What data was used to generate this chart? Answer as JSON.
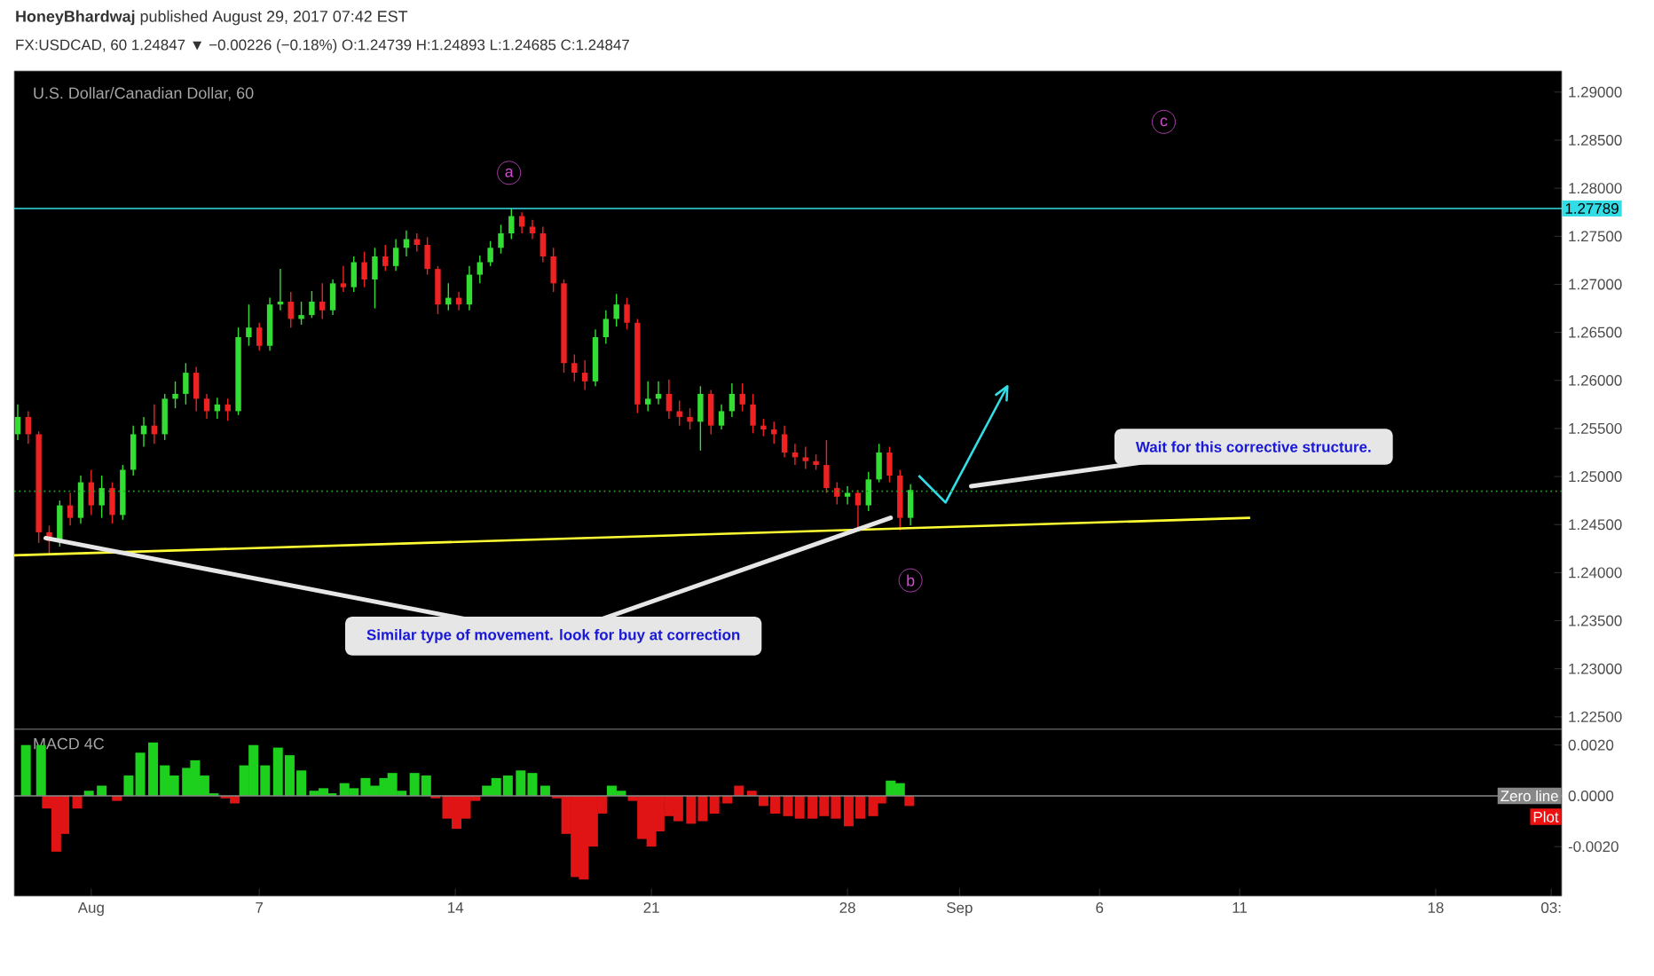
{
  "chart_data": [
    {
      "type": "candlestick",
      "title": "U.S. Dollar/Canadian Dollar, 60",
      "subtitle": "FX:USDCAD, 60  1.24847 ▼ −0.00226 (−0.18%) O:1.24739 H:1.24893 L:1.24685 C:1.24847",
      "xlim": [
        "2017-07-29T06:00",
        "2017-09-22T12:00"
      ],
      "ylim": [
        1.2237,
        1.2922
      ],
      "tick_labels": "y",
      "yticks": [
        {
          "value": 1.225,
          "label": "1.22500"
        },
        {
          "value": 1.23,
          "label": "1.23000"
        },
        {
          "value": 1.235,
          "label": "1.23500"
        },
        {
          "value": 1.24,
          "label": "1.24000"
        },
        {
          "value": 1.245,
          "label": "1.24500"
        },
        {
          "value": 1.25,
          "label": "1.25000"
        },
        {
          "value": 1.255,
          "label": "1.25500"
        },
        {
          "value": 1.26,
          "label": "1.26000"
        },
        {
          "value": 1.265,
          "label": "1.26500"
        },
        {
          "value": 1.27,
          "label": "1.27000"
        },
        {
          "value": 1.275,
          "label": "1.27500"
        },
        {
          "value": 1.28,
          "label": "1.28000"
        },
        {
          "value": 1.285,
          "label": "1.28500"
        },
        {
          "value": 1.29,
          "label": "1.29000"
        }
      ],
      "series": [
        {
          "type": "candlestick",
          "x": [
            "2017-07-29T09:00",
            "2017-07-29T18:00",
            "2017-07-30T03:00",
            "2017-07-30T12:00",
            "2017-07-30T21:00",
            "2017-07-31T06:00",
            "2017-07-31T15:00",
            "2017-08-01T00:00",
            "2017-08-01T09:00",
            "2017-08-01T18:00",
            "2017-08-02T03:00",
            "2017-08-02T12:00",
            "2017-08-02T21:00",
            "2017-08-03T06:00",
            "2017-08-03T15:00",
            "2017-08-04T00:00",
            "2017-08-04T09:00",
            "2017-08-04T18:00",
            "2017-08-05T03:00",
            "2017-08-05T12:00",
            "2017-08-05T21:00",
            "2017-08-06T06:00",
            "2017-08-06T15:00",
            "2017-08-07T00:00",
            "2017-08-07T09:00",
            "2017-08-07T18:00",
            "2017-08-08T03:00",
            "2017-08-08T12:00",
            "2017-08-08T21:00",
            "2017-08-09T06:00",
            "2017-08-09T15:00",
            "2017-08-10T00:00",
            "2017-08-10T09:00",
            "2017-08-10T18:00",
            "2017-08-11T03:00",
            "2017-08-11T12:00",
            "2017-08-11T21:00",
            "2017-08-12T06:00",
            "2017-08-12T15:00",
            "2017-08-13T00:00",
            "2017-08-13T09:00",
            "2017-08-13T18:00",
            "2017-08-14T03:00",
            "2017-08-14T12:00",
            "2017-08-14T21:00",
            "2017-08-15T06:00",
            "2017-08-15T15:00",
            "2017-08-16T00:00",
            "2017-08-16T09:00",
            "2017-08-16T18:00",
            "2017-08-17T03:00",
            "2017-08-17T12:00",
            "2017-08-17T21:00",
            "2017-08-18T06:00",
            "2017-08-18T15:00",
            "2017-08-19T00:00",
            "2017-08-19T09:00",
            "2017-08-19T18:00",
            "2017-08-20T03:00",
            "2017-08-20T12:00",
            "2017-08-20T21:00",
            "2017-08-21T06:00",
            "2017-08-21T15:00",
            "2017-08-22T00:00",
            "2017-08-22T09:00",
            "2017-08-22T18:00",
            "2017-08-23T03:00",
            "2017-08-23T12:00",
            "2017-08-23T21:00",
            "2017-08-24T06:00",
            "2017-08-24T15:00",
            "2017-08-25T00:00",
            "2017-08-25T09:00",
            "2017-08-25T18:00",
            "2017-08-26T03:00",
            "2017-08-26T12:00",
            "2017-08-26T21:00",
            "2017-08-27T06:00",
            "2017-08-27T15:00",
            "2017-08-28T00:00",
            "2017-08-28T09:00",
            "2017-08-28T18:00",
            "2017-08-29T03:00",
            "2017-08-29T12:00",
            "2017-08-29T21:00",
            "2017-08-30T06:00"
          ],
          "ohlc": [
            [
              1.2544,
              1.2575,
              1.2538,
              1.2562
            ],
            [
              1.2562,
              1.2568,
              1.2534,
              1.2544
            ],
            [
              1.2544,
              1.2547,
              1.2431,
              1.2442
            ],
            [
              1.2442,
              1.2449,
              1.242,
              1.2433
            ],
            [
              1.2433,
              1.2475,
              1.2427,
              1.247
            ],
            [
              1.247,
              1.2483,
              1.2449,
              1.2457
            ],
            [
              1.2457,
              1.2501,
              1.2451,
              1.2494
            ],
            [
              1.2494,
              1.2507,
              1.246,
              1.247
            ],
            [
              1.247,
              1.2501,
              1.2457,
              1.2488
            ],
            [
              1.2488,
              1.2494,
              1.2451,
              1.246
            ],
            [
              1.246,
              1.2512,
              1.2455,
              1.2507
            ],
            [
              1.2507,
              1.2553,
              1.2501,
              1.2544
            ],
            [
              1.2544,
              1.2562,
              1.2531,
              1.2553
            ],
            [
              1.2553,
              1.2575,
              1.2534,
              1.2544
            ],
            [
              1.2544,
              1.2586,
              1.2538,
              1.2581
            ],
            [
              1.2581,
              1.2599,
              1.2571,
              1.2586
            ],
            [
              1.2586,
              1.2618,
              1.2575,
              1.2608
            ],
            [
              1.2608,
              1.2614,
              1.2568,
              1.2581
            ],
            [
              1.2581,
              1.2586,
              1.256,
              1.2568
            ],
            [
              1.2568,
              1.2582,
              1.256,
              1.2575
            ],
            [
              1.2575,
              1.2581,
              1.2558,
              1.2568
            ],
            [
              1.2568,
              1.2655,
              1.2564,
              1.2645
            ],
            [
              1.2645,
              1.2679,
              1.2636,
              1.2655
            ],
            [
              1.2655,
              1.266,
              1.2631,
              1.2636
            ],
            [
              1.2636,
              1.2686,
              1.2631,
              1.2679
            ],
            [
              1.2679,
              1.2716,
              1.2673,
              1.2682
            ],
            [
              1.2682,
              1.2692,
              1.2655,
              1.2664
            ],
            [
              1.2664,
              1.2682,
              1.2658,
              1.2668
            ],
            [
              1.2668,
              1.2693,
              1.2665,
              1.2682
            ],
            [
              1.2682,
              1.2701,
              1.2664,
              1.2673
            ],
            [
              1.2673,
              1.2705,
              1.2668,
              1.2701
            ],
            [
              1.2701,
              1.2719,
              1.2692,
              1.2697
            ],
            [
              1.2697,
              1.2729,
              1.2692,
              1.2723
            ],
            [
              1.2723,
              1.2734,
              1.2697,
              1.2705
            ],
            [
              1.2705,
              1.2738,
              1.2675,
              1.2729
            ],
            [
              1.2729,
              1.2741,
              1.2714,
              1.2719
            ],
            [
              1.2719,
              1.2747,
              1.2714,
              1.2738
            ],
            [
              1.2738,
              1.2756,
              1.2729,
              1.2747
            ],
            [
              1.2747,
              1.2753,
              1.2734,
              1.2741
            ],
            [
              1.2741,
              1.2749,
              1.271,
              1.2716
            ],
            [
              1.2716,
              1.2719,
              1.2669,
              1.2679
            ],
            [
              1.2679,
              1.2701,
              1.2673,
              1.2686
            ],
            [
              1.2686,
              1.2692,
              1.2673,
              1.2679
            ],
            [
              1.2679,
              1.2719,
              1.2673,
              1.271
            ],
            [
              1.271,
              1.273,
              1.2701,
              1.2723
            ],
            [
              1.2723,
              1.2745,
              1.2719,
              1.2738
            ],
            [
              1.2738,
              1.2762,
              1.2732,
              1.2753
            ],
            [
              1.2753,
              1.2779,
              1.2747,
              1.2771
            ],
            [
              1.2771,
              1.2775,
              1.2753,
              1.276
            ],
            [
              1.276,
              1.2767,
              1.2747,
              1.2753
            ],
            [
              1.2753,
              1.276,
              1.2723,
              1.2729
            ],
            [
              1.2729,
              1.2738,
              1.2692,
              1.2701
            ],
            [
              1.2701,
              1.2705,
              1.2608,
              1.2618
            ],
            [
              1.2618,
              1.2627,
              1.2599,
              1.2608
            ],
            [
              1.2608,
              1.2621,
              1.259,
              1.2599
            ],
            [
              1.2599,
              1.2653,
              1.2594,
              1.2645
            ],
            [
              1.2645,
              1.2673,
              1.2638,
              1.2664
            ],
            [
              1.2664,
              1.269,
              1.2656,
              1.2679
            ],
            [
              1.2679,
              1.2686,
              1.2653,
              1.266
            ],
            [
              1.266,
              1.2664,
              1.2566,
              1.2575
            ],
            [
              1.2575,
              1.2599,
              1.2568,
              1.2581
            ],
            [
              1.2581,
              1.2599,
              1.2575,
              1.2586
            ],
            [
              1.2586,
              1.2601,
              1.256,
              1.2568
            ],
            [
              1.2568,
              1.2579,
              1.2553,
              1.2562
            ],
            [
              1.2562,
              1.2571,
              1.2549,
              1.2557
            ],
            [
              1.2557,
              1.2594,
              1.2527,
              1.2586
            ],
            [
              1.2586,
              1.259,
              1.2544,
              1.2553
            ],
            [
              1.2553,
              1.2575,
              1.2549,
              1.2568
            ],
            [
              1.2568,
              1.2597,
              1.2562,
              1.2586
            ],
            [
              1.2586,
              1.2597,
              1.2568,
              1.2575
            ],
            [
              1.2575,
              1.2586,
              1.2545,
              1.2553
            ],
            [
              1.2553,
              1.256,
              1.2542,
              1.2549
            ],
            [
              1.2549,
              1.2557,
              1.2534,
              1.2544
            ],
            [
              1.2544,
              1.2553,
              1.252,
              1.2525
            ],
            [
              1.2525,
              1.2534,
              1.2512,
              1.252
            ],
            [
              1.252,
              1.2531,
              1.2508,
              1.2516
            ],
            [
              1.2516,
              1.2523,
              1.2507,
              1.2512
            ],
            [
              1.2512,
              1.2538,
              1.2483,
              1.2488
            ],
            [
              1.2488,
              1.2494,
              1.2471,
              1.2479
            ],
            [
              1.2479,
              1.249,
              1.2471,
              1.2483
            ],
            [
              1.2483,
              1.2486,
              1.2447,
              1.247
            ],
            [
              1.247,
              1.2505,
              1.2464,
              1.2497
            ],
            [
              1.2497,
              1.2534,
              1.2494,
              1.2525
            ],
            [
              1.2525,
              1.2531,
              1.2494,
              1.2501
            ],
            [
              1.2501,
              1.2507,
              1.2444,
              1.2457
            ],
            [
              1.2457,
              1.2492,
              1.2449,
              1.2486
            ]
          ]
        },
        {
          "type": "line",
          "color": "#ffff33",
          "x": [
            "2017-07-29T06:00",
            "2017-09-11T09:00"
          ],
          "values": [
            1.2418,
            1.2457
          ]
        },
        {
          "type": "line",
          "color": "#33dde6",
          "x": [
            "2017-08-30T13:00",
            "2017-08-31T12:00",
            "2017-09-02T17:00"
          ],
          "values": [
            1.2501,
            1.2473,
            1.2594
          ]
        }
      ],
      "ref_lines": [
        {
          "axis": "y",
          "value": 1.27789,
          "label": "1.27789",
          "color": "#33dde6"
        },
        {
          "axis": "y",
          "value": 1.24847,
          "color": "#22aa22",
          "line_style": "dotted"
        }
      ],
      "annotations": [
        "**HoneyBhardwaj** published August 29, 2017 07:42 EST",
        {
          "text": "Similar type of movement. look for buy at correction",
          "x": "2017-07-30T09:00",
          "y": 1.2436
        },
        {
          "text": "Wait for this corrective structure.",
          "x": "2017-09-01T10:00",
          "y": 1.249
        },
        {
          "text": "a",
          "x": "2017-08-15T22:00",
          "y": 1.2816
        },
        {
          "text": "b",
          "x": "2017-08-30T06:00",
          "y": 1.2392
        },
        {
          "text": "c",
          "x": "2017-09-08T07:00",
          "y": 1.2869
        }
      ]
    },
    {
      "type": "bar",
      "title": "MACD 4C",
      "xlim": [
        "2017-07-29T06:00",
        "2017-09-22T12:00"
      ],
      "ylim": [
        -0.00395,
        0.00262
      ],
      "xticks": [
        {
          "value": "2017-08-01",
          "label": "Aug"
        },
        {
          "value": "2017-08-07",
          "label": "7"
        },
        {
          "value": "2017-08-14",
          "label": "14"
        },
        {
          "value": "2017-08-21",
          "label": "21"
        },
        {
          "value": "2017-08-28",
          "label": "28"
        },
        {
          "value": "2017-09-01",
          "label": "Sep"
        },
        {
          "value": "2017-09-06",
          "label": "6"
        },
        {
          "value": "2017-09-11",
          "label": "11"
        },
        {
          "value": "2017-09-18",
          "label": "18"
        },
        {
          "value": "2017-09-22T03:00",
          "label": "03:"
        }
      ],
      "yticks": [
        {
          "value": -0.002,
          "label": "-0.0020"
        },
        {
          "value": 0,
          "label": "0.0000"
        },
        {
          "value": 0.002,
          "label": "0.0020"
        }
      ],
      "x": [
        "2017-07-29T16:00",
        "2017-07-30T05:00",
        "2017-07-30T10:00",
        "2017-07-30T18:00",
        "2017-07-31T01:00",
        "2017-07-31T12:00",
        "2017-07-31T22:00",
        "2017-08-01T09:00",
        "2017-08-01T22:00",
        "2017-08-02T08:00",
        "2017-08-02T18:00",
        "2017-08-03T05:00",
        "2017-08-03T15:00",
        "2017-08-03T23:00",
        "2017-08-04T10:00",
        "2017-08-04T17:00",
        "2017-08-05T01:00",
        "2017-08-05T09:00",
        "2017-08-05T19:00",
        "2017-08-06T03:00",
        "2017-08-06T11:00",
        "2017-08-06T19:00",
        "2017-08-07T05:00",
        "2017-08-07T16:00",
        "2017-08-08T02:00",
        "2017-08-08T12:00",
        "2017-08-08T23:00",
        "2017-08-09T07:00",
        "2017-08-09T14:00",
        "2017-08-10T01:00",
        "2017-08-10T09:00",
        "2017-08-10T19:00",
        "2017-08-11T03:00",
        "2017-08-11T11:00",
        "2017-08-11T18:00",
        "2017-08-12T02:00",
        "2017-08-12T13:00",
        "2017-08-12T23:00",
        "2017-08-13T07:00",
        "2017-08-13T17:00",
        "2017-08-14T01:00",
        "2017-08-14T09:00",
        "2017-08-14T17:00",
        "2017-08-15T03:00",
        "2017-08-15T11:00",
        "2017-08-15T21:00",
        "2017-08-16T08:00",
        "2017-08-16T18:00",
        "2017-08-17T05:00",
        "2017-08-17T15:00",
        "2017-08-17T23:00",
        "2017-08-18T07:00",
        "2017-08-18T14:00",
        "2017-08-18T22:00",
        "2017-08-19T06:00",
        "2017-08-19T14:00",
        "2017-08-19T22:00",
        "2017-08-20T08:00",
        "2017-08-20T16:00",
        "2017-08-21T00:00",
        "2017-08-21T07:00",
        "2017-08-21T15:00",
        "2017-08-21T23:00",
        "2017-08-22T10:00",
        "2017-08-22T20:00",
        "2017-08-23T06:00",
        "2017-08-23T17:00",
        "2017-08-24T03:00",
        "2017-08-24T14:00",
        "2017-08-25T00:00",
        "2017-08-25T10:00",
        "2017-08-25T21:00",
        "2017-08-26T07:00",
        "2017-08-26T18:00",
        "2017-08-27T04:00",
        "2017-08-27T14:00",
        "2017-08-28T01:00",
        "2017-08-28T11:00",
        "2017-08-28T22:00",
        "2017-08-29T05:00",
        "2017-08-29T13:00",
        "2017-08-29T21:00",
        "2017-08-30T05:00"
      ],
      "values": [
        0.002,
        0.002,
        -0.0005,
        -0.0022,
        -0.0015,
        -0.0005,
        0.0002,
        0.0004,
        -0.0002,
        0.0008,
        0.0017,
        0.0021,
        0.0012,
        0.0008,
        0.0011,
        0.0014,
        0.0008,
        0.0001,
        -0.0001,
        -0.0003,
        0.0012,
        0.002,
        0.0012,
        0.0019,
        0.0016,
        0.001,
        0.0002,
        0.0003,
        0.0001,
        0.0005,
        0.0003,
        0.0007,
        0.0004,
        0.0007,
        0.0009,
        0.0002,
        0.0009,
        0.0008,
        -0.0001,
        -0.0009,
        -0.0013,
        -0.0009,
        -0.0002,
        0.0004,
        0.0007,
        0.0008,
        0.001,
        0.0009,
        0.0004,
        -0.0001,
        -0.0015,
        -0.0032,
        -0.0033,
        -0.002,
        -0.0007,
        0.0004,
        0.0002,
        -0.0002,
        -0.0017,
        -0.002,
        -0.0014,
        -0.0008,
        -0.001,
        -0.0011,
        -0.001,
        -0.0007,
        -0.0003,
        0.0004,
        0.0002,
        -0.0004,
        -0.0007,
        -0.0008,
        -0.0009,
        -0.0009,
        -0.0008,
        -0.0009,
        -0.0012,
        -0.0009,
        -0.0008,
        -0.0003,
        0.0006,
        0.0005,
        -0.0004
      ],
      "colors": [
        "#1ed01e",
        "#1ed01e",
        "#e01414",
        "#e01414",
        "#e01414",
        "#e01414",
        "#1ed01e",
        "#1ed01e",
        "#e01414",
        "#1ed01e",
        "#1ed01e",
        "#1ed01e",
        "#1ed01e",
        "#1ed01e",
        "#1ed01e",
        "#1ed01e",
        "#1ed01e",
        "#1ed01e",
        "#e01414",
        "#e01414",
        "#1ed01e",
        "#1ed01e",
        "#1ed01e",
        "#1ed01e",
        "#1ed01e",
        "#1ed01e",
        "#1ed01e",
        "#1ed01e",
        "#1ed01e",
        "#1ed01e",
        "#1ed01e",
        "#1ed01e",
        "#1ed01e",
        "#1ed01e",
        "#1ed01e",
        "#1ed01e",
        "#1ed01e",
        "#1ed01e",
        "#e01414",
        "#e01414",
        "#e01414",
        "#e01414",
        "#e01414",
        "#1ed01e",
        "#1ed01e",
        "#1ed01e",
        "#1ed01e",
        "#1ed01e",
        "#1ed01e",
        "#e01414",
        "#e01414",
        "#e01414",
        "#e01414",
        "#e01414",
        "#e01414",
        "#1ed01e",
        "#1ed01e",
        "#e01414",
        "#e01414",
        "#e01414",
        "#e01414",
        "#e01414",
        "#e01414",
        "#e01414",
        "#e01414",
        "#e01414",
        "#e01414",
        "#e01414",
        "#e01414",
        "#e01414",
        "#e01414",
        "#e01414",
        "#e01414",
        "#e01414",
        "#e01414",
        "#e01414",
        "#e01414",
        "#e01414",
        "#e01414",
        "#e01414",
        "#1ed01e",
        "#1ed01e",
        "#e01414"
      ],
      "ref_lines": [
        {
          "axis": "y",
          "value": 0,
          "label": "Zero line",
          "color": "#888888"
        }
      ],
      "annotations": [
        "Plot"
      ]
    }
  ]
}
